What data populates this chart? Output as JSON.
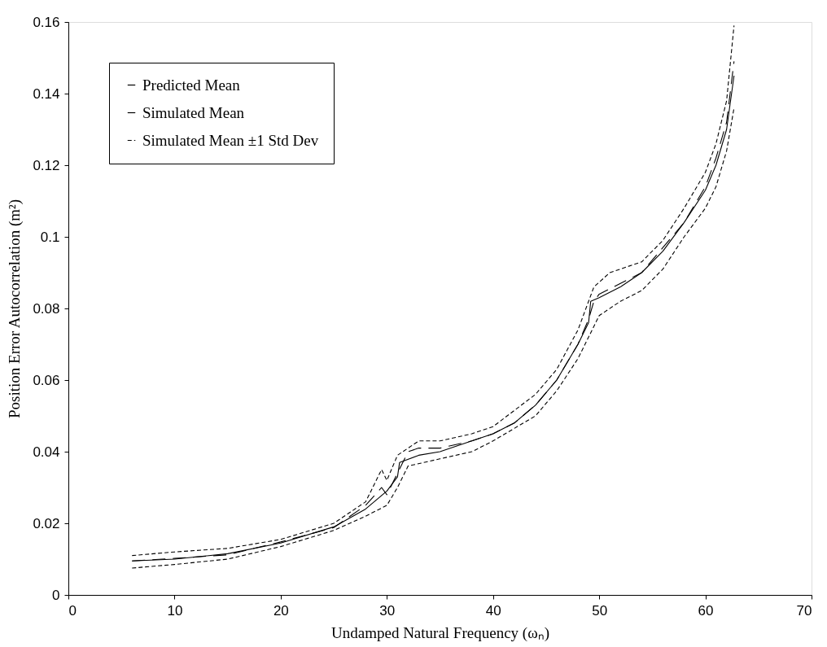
{
  "chart_data": {
    "type": "line",
    "xlabel": "Undamped Natural Frequency (ωₙ)",
    "ylabel": "Position Error Autocorrelation (m²)",
    "xlim": [
      0,
      70
    ],
    "xticks": [
      0,
      10,
      20,
      30,
      40,
      50,
      60,
      70
    ],
    "ylim": [
      0,
      0.16
    ],
    "yticks": [
      0,
      0.02,
      0.04,
      0.06,
      0.08,
      0.1,
      0.12,
      0.14,
      0.16
    ],
    "grid": false,
    "legend": "top left",
    "marker": "none",
    "series": [
      {
        "name": "Predicted Mean",
        "color": "#000000",
        "line_style": "solid",
        "x": [
          6,
          10,
          15,
          20,
          25,
          28,
          30,
          31,
          31.2,
          33,
          35,
          38,
          40,
          42,
          44,
          46,
          48,
          49,
          49.2,
          50,
          52,
          54,
          56,
          58,
          60,
          61,
          62,
          62.7
        ],
        "values": [
          0.0095,
          0.01,
          0.0115,
          0.0145,
          0.019,
          0.024,
          0.029,
          0.033,
          0.037,
          0.039,
          0.04,
          0.043,
          0.045,
          0.048,
          0.053,
          0.06,
          0.07,
          0.076,
          0.082,
          0.083,
          0.086,
          0.09,
          0.096,
          0.104,
          0.113,
          0.12,
          0.13,
          0.145
        ]
      },
      {
        "name": "Simulated Mean",
        "color": "#000000",
        "line_style": "dashed",
        "x": [
          6,
          10,
          15,
          20,
          25,
          28,
          29.5,
          30,
          31,
          32,
          33,
          35,
          38,
          40,
          42,
          44,
          46,
          48,
          49,
          49.5,
          50,
          52,
          54,
          56,
          58,
          60,
          61,
          62,
          62.7
        ],
        "values": [
          0.0095,
          0.0102,
          0.0112,
          0.0148,
          0.0188,
          0.025,
          0.03,
          0.028,
          0.034,
          0.04,
          0.041,
          0.041,
          0.043,
          0.045,
          0.048,
          0.053,
          0.06,
          0.07,
          0.077,
          0.082,
          0.084,
          0.087,
          0.09,
          0.097,
          0.104,
          0.114,
          0.122,
          0.132,
          0.149
        ]
      },
      {
        "name": "Simulated Mean ±1 Std Dev",
        "color": "#000000",
        "line_style": "dashed",
        "x": [
          6,
          10,
          15,
          20,
          25,
          28,
          29.5,
          30,
          31,
          33,
          35,
          38,
          40,
          44,
          46,
          48,
          49.5,
          51,
          54,
          56,
          58,
          60,
          61,
          62,
          62.7
        ],
        "values": [
          0.011,
          0.012,
          0.013,
          0.0155,
          0.02,
          0.026,
          0.035,
          0.032,
          0.039,
          0.043,
          0.043,
          0.045,
          0.047,
          0.056,
          0.063,
          0.074,
          0.086,
          0.09,
          0.093,
          0.099,
          0.108,
          0.118,
          0.126,
          0.138,
          0.159
        ]
      },
      {
        "color": "#000000",
        "line_style": "dashed",
        "x": [
          6,
          10,
          15,
          20,
          25,
          28,
          30,
          31,
          32,
          35,
          38,
          40,
          44,
          46,
          48,
          50,
          52,
          54,
          56,
          58,
          60,
          61,
          62,
          62.7
        ],
        "values": [
          0.0075,
          0.0085,
          0.01,
          0.0135,
          0.018,
          0.022,
          0.025,
          0.03,
          0.036,
          0.038,
          0.04,
          0.043,
          0.05,
          0.057,
          0.066,
          0.078,
          0.082,
          0.085,
          0.091,
          0.1,
          0.108,
          0.114,
          0.124,
          0.136
        ]
      }
    ]
  }
}
